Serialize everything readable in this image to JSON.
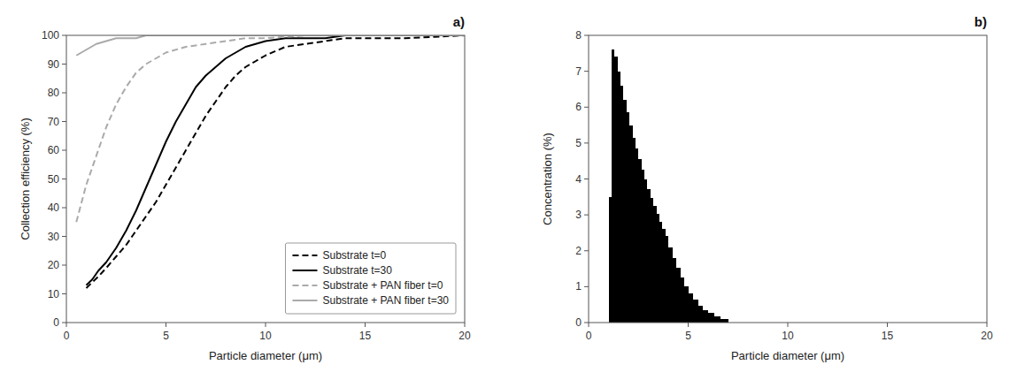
{
  "chart_data": [
    {
      "type": "line",
      "title": "a)",
      "x_label": "Particle diameter (μm)",
      "y_label": "Collection efficiency (%)",
      "xlim": [
        0,
        20
      ],
      "ylim": [
        0,
        100
      ],
      "xticks": [
        0,
        5,
        10,
        15,
        20
      ],
      "yticks": [
        0,
        10,
        20,
        30,
        40,
        50,
        60,
        70,
        80,
        90,
        100
      ],
      "grid": false,
      "legend": "lower right",
      "series": [
        {
          "name": "Substrate t=0",
          "color": "#000000",
          "line_style": "dashed",
          "x": [
            1.0,
            1.3,
            1.6,
            2.0,
            2.5,
            3.0,
            3.5,
            4.0,
            4.5,
            5.0,
            5.5,
            6.0,
            6.5,
            7.0,
            7.5,
            8.0,
            8.5,
            9.0,
            9.5,
            10.0,
            11.0,
            12.0,
            13.0,
            14.0,
            15.0,
            17.0,
            20.0
          ],
          "values": [
            12,
            14,
            16,
            19,
            23,
            27,
            32,
            37,
            42,
            48,
            54,
            60,
            66,
            72,
            77,
            82,
            86,
            89,
            91,
            93,
            96,
            97,
            98,
            99,
            99,
            99,
            100
          ]
        },
        {
          "name": "Substrate t=30",
          "color": "#000000",
          "line_style": "solid",
          "x": [
            1.0,
            1.3,
            1.6,
            2.0,
            2.5,
            3.0,
            3.5,
            4.0,
            4.5,
            5.0,
            5.5,
            6.0,
            6.5,
            7.0,
            7.5,
            8.0,
            8.5,
            9.0,
            9.5,
            10.0,
            11.0,
            12.0,
            13.0,
            14.0,
            15.0,
            17.0,
            20.0
          ],
          "values": [
            13,
            15,
            18,
            21,
            26,
            32,
            39,
            47,
            55,
            63,
            70,
            76,
            82,
            86,
            89,
            92,
            94,
            96,
            97,
            98,
            99,
            99,
            99,
            100,
            100,
            100,
            100
          ]
        },
        {
          "name": "Substrate + PAN fiber t=0",
          "color": "#aaaaaa",
          "line_style": "dashed",
          "x": [
            0.5,
            1.0,
            1.5,
            2.0,
            2.5,
            3.0,
            3.5,
            4.0,
            4.5,
            5.0,
            6.0,
            7.0,
            8.0,
            9.0,
            10.0,
            12.0,
            15.0,
            20.0
          ],
          "values": [
            35,
            48,
            58,
            68,
            76,
            82,
            87,
            90,
            92,
            94,
            96,
            97,
            98,
            99,
            99,
            100,
            100,
            100
          ]
        },
        {
          "name": "Substrate + PAN fiber t=30",
          "color": "#aaaaaa",
          "line_style": "solid",
          "x": [
            0.5,
            1.0,
            1.5,
            2.0,
            2.5,
            3.0,
            3.5,
            4.0,
            5.0,
            6.0,
            7.0,
            8.0,
            10.0,
            15.0,
            20.0
          ],
          "values": [
            93,
            95,
            97,
            98,
            99,
            99,
            99,
            100,
            100,
            100,
            100,
            100,
            100,
            100,
            100
          ]
        }
      ]
    },
    {
      "type": "histogram",
      "title": "b)",
      "x_label": "Particle diameter (μm)",
      "y_label": "Concentration (%)",
      "xlim": [
        0,
        20
      ],
      "ylim": [
        0,
        8
      ],
      "xticks": [
        0,
        5,
        10,
        15,
        20
      ],
      "yticks": [
        0,
        1,
        2,
        3,
        4,
        5,
        6,
        7,
        8
      ],
      "grid": false,
      "color": "#000000",
      "bins": [
        1.0,
        1.15,
        1.3,
        1.45,
        1.6,
        1.75,
        1.9,
        2.05,
        2.2,
        2.35,
        2.5,
        2.65,
        2.8,
        2.95,
        3.1,
        3.25,
        3.4,
        3.55,
        3.7,
        3.85,
        4.0,
        4.2,
        4.4,
        4.6,
        4.8,
        5.0,
        5.25,
        5.5,
        5.75,
        6.0,
        6.3,
        6.6,
        7.0
      ],
      "values": [
        3.5,
        7.6,
        7.4,
        7.0,
        6.6,
        6.2,
        5.85,
        5.5,
        5.15,
        4.85,
        4.55,
        4.25,
        3.98,
        3.72,
        3.48,
        3.25,
        3.02,
        2.8,
        2.6,
        2.42,
        2.1,
        1.8,
        1.52,
        1.26,
        1.02,
        0.82,
        0.64,
        0.48,
        0.34,
        0.26,
        0.18,
        0.1
      ]
    }
  ]
}
